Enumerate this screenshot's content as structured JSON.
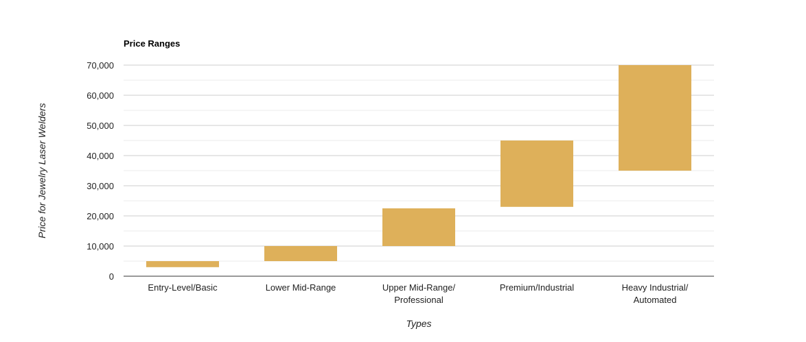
{
  "chart_data": {
    "type": "bar",
    "subtype": "floating-range",
    "title": "Price Ranges",
    "xlabel": "Types",
    "ylabel": "Price for Jewelry Laser Welders",
    "categories": [
      [
        "Entry-Level/Basic"
      ],
      [
        "Lower Mid-Range"
      ],
      [
        "Upper Mid-Range/",
        "Professional"
      ],
      [
        "Premium/Industrial"
      ],
      [
        "Heavy Industrial/",
        "Automated"
      ]
    ],
    "ranges": [
      [
        3000,
        5000
      ],
      [
        5000,
        10000
      ],
      [
        10000,
        22500
      ],
      [
        23000,
        45000
      ],
      [
        35000,
        70000
      ]
    ],
    "ylim": [
      0,
      70000
    ],
    "yticks": [
      0,
      10000,
      20000,
      30000,
      40000,
      50000,
      60000,
      70000
    ],
    "ytick_labels": [
      "0",
      "10,000",
      "20,000",
      "30,000",
      "40,000",
      "50,000",
      "60,000",
      "70,000"
    ],
    "grid": true,
    "minor_grid": true,
    "legend": "none",
    "bar_color": "#deb05a",
    "grid_color": "#cccccc",
    "minor_grid_color": "#ebebeb",
    "axis_color": "#333333"
  }
}
